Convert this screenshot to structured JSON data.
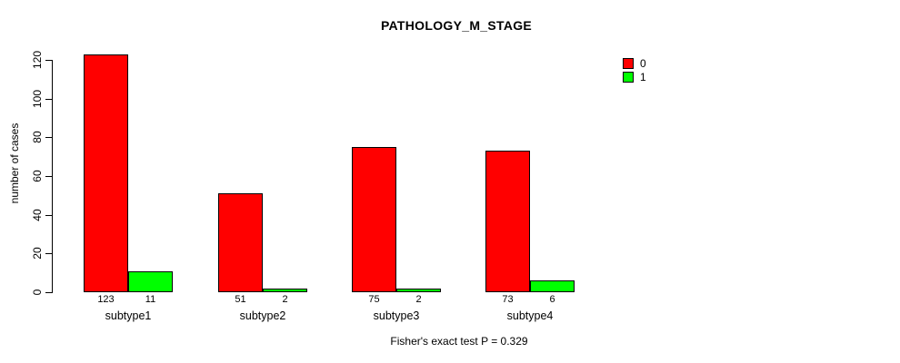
{
  "chart_data": {
    "type": "bar",
    "title": "PATHOLOGY_M_STAGE",
    "categories": [
      "subtype1",
      "subtype2",
      "subtype3",
      "subtype4"
    ],
    "series": [
      {
        "name": "0",
        "color": "#ff0000",
        "values": [
          123,
          51,
          75,
          73
        ]
      },
      {
        "name": "1",
        "color": "#00ff00",
        "values": [
          11,
          2,
          2,
          6
        ]
      }
    ],
    "bar_value_labels": {
      "shown": true,
      "series_0": [
        "123",
        "51",
        "75",
        "73"
      ],
      "series_1": [
        "11",
        "2",
        "2",
        "6"
      ]
    },
    "xlabel": "",
    "ylabel": "number of cases",
    "ylim": [
      0,
      120
    ],
    "yticks": [
      0,
      20,
      40,
      60,
      80,
      100,
      120
    ],
    "grid": false,
    "legend_position": "top-right",
    "bar_border_color": "#000000",
    "annotation": "Fisher's exact test P = 0.329"
  }
}
